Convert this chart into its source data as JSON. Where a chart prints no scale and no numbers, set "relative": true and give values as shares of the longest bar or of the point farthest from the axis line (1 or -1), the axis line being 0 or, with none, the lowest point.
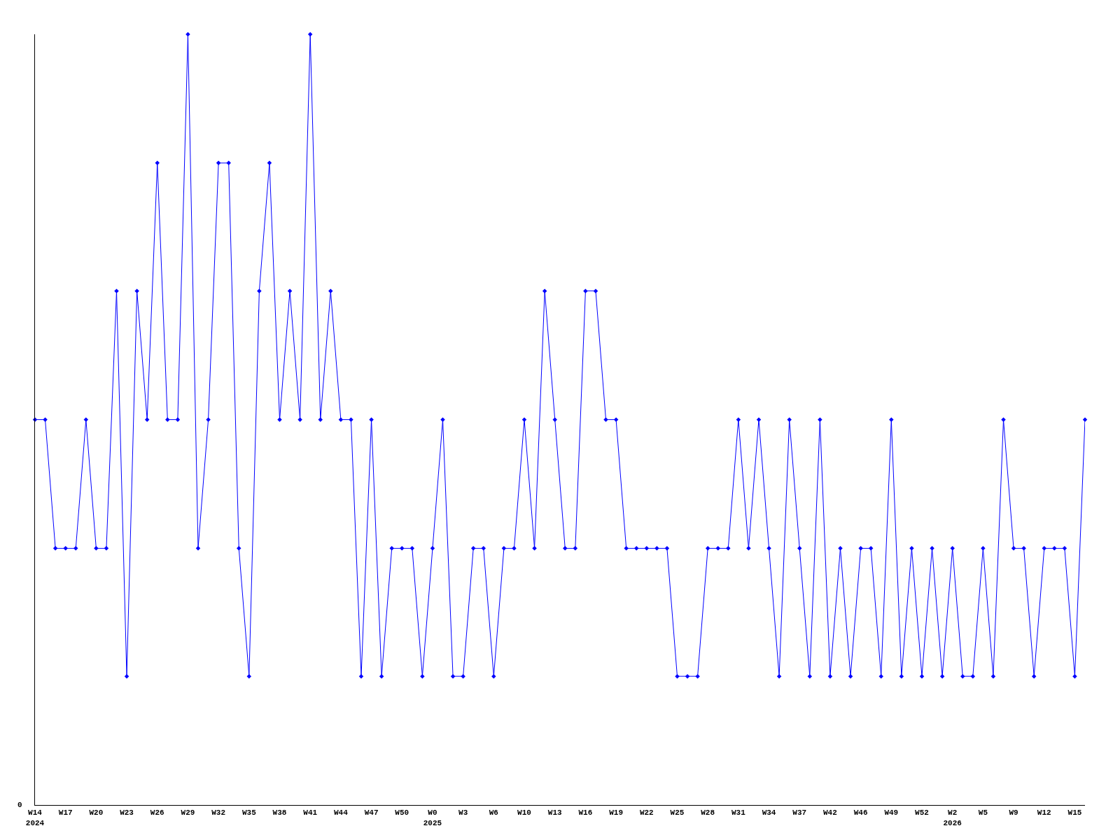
{
  "chart_data": {
    "type": "line",
    "relative": true,
    "marker": "diamond",
    "line_style": "solid",
    "grid": false,
    "annotations": [
      "0"
    ],
    "categories": [
      "W14\n2024",
      null,
      null,
      "W17",
      null,
      null,
      "W20",
      null,
      null,
      "W23",
      null,
      null,
      "W26",
      null,
      null,
      "W29",
      null,
      null,
      "W32",
      null,
      null,
      "W35",
      null,
      null,
      "W38",
      null,
      null,
      "W41",
      null,
      null,
      "W44",
      null,
      null,
      "W47",
      null,
      null,
      "W50",
      null,
      null,
      "W0\n2025",
      null,
      null,
      "W3",
      null,
      null,
      "W6",
      null,
      null,
      "W10",
      null,
      null,
      "W13",
      null,
      null,
      "W16",
      null,
      null,
      "W19",
      null,
      null,
      "W22",
      null,
      null,
      "W25",
      null,
      null,
      "W28",
      null,
      null,
      "W31",
      null,
      null,
      "W34",
      null,
      null,
      "W37",
      null,
      null,
      "W42",
      null,
      null,
      "W46",
      null,
      null,
      "W49",
      null,
      null,
      "W52",
      null,
      null,
      "W2\n2026",
      null,
      null,
      "W5",
      null,
      null,
      "W9",
      null,
      null,
      "W12",
      null,
      null,
      "W15",
      null
    ],
    "series": [
      {
        "color": "#0000ff",
        "values": [
          0.5,
          0.5,
          0.333,
          0.333,
          0.333,
          0.5,
          0.333,
          0.333,
          0.667,
          0.167,
          0.667,
          0.5,
          0.833,
          0.5,
          0.5,
          1,
          0.333,
          0.5,
          0.833,
          0.833,
          0.333,
          0.167,
          0.667,
          0.833,
          0.5,
          0.667,
          0.5,
          1,
          0.5,
          0.667,
          0.5,
          0.5,
          0.167,
          0.5,
          0.167,
          0.333,
          0.333,
          0.333,
          0.167,
          0.333,
          0.5,
          0.167,
          0.167,
          0.333,
          0.333,
          0.167,
          0.333,
          0.333,
          0.5,
          0.333,
          0.667,
          0.5,
          0.333,
          0.333,
          0.667,
          0.667,
          0.5,
          0.5,
          0.333,
          0.333,
          0.333,
          0.333,
          0.333,
          0.167,
          0.167,
          0.167,
          0.333,
          0.333,
          0.333,
          0.5,
          0.333,
          0.5,
          0.333,
          0.167,
          0.5,
          0.333,
          0.167,
          0.5,
          0.167,
          0.333,
          0.167,
          0.333,
          0.333,
          0.167,
          0.5,
          0.167,
          0.333,
          0.167,
          0.333,
          0.167,
          0.333,
          0.167,
          0.167,
          0.333,
          0.167,
          0.5,
          0.333,
          0.333,
          0.167,
          0.333,
          0.333,
          0.333,
          0.167,
          0.5
        ]
      }
    ]
  }
}
